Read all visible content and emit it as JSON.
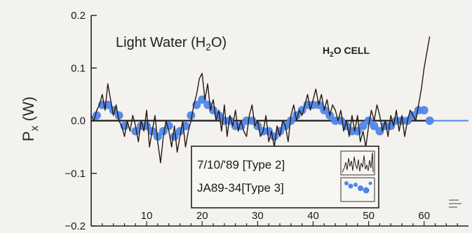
{
  "chart_data": {
    "type": "line",
    "title_text": "Light Water (H",
    "title_sub": "2",
    "title_end": "O)",
    "cell_text": "H",
    "cell_sub": "2",
    "cell_end": "O  CELL",
    "ylabel_main": "P",
    "ylabel_sub": "x",
    "ylabel_end": " (W)",
    "xlabel": "",
    "xlim": [
      0,
      68
    ],
    "ylim": [
      -0.2,
      0.2
    ],
    "x_ticks": [
      10,
      20,
      30,
      40,
      50,
      60
    ],
    "x_tick_labels": [
      "10",
      "20",
      "30",
      "40",
      "50",
      "60"
    ],
    "y_ticks": [
      0.2,
      0.1,
      0.0,
      -0.1,
      -0.2
    ],
    "y_tick_labels": [
      "0.2",
      "0.1",
      "0.0",
      "−0.1",
      "−0.2"
    ],
    "zero_line": true,
    "legend_position": "bottom-center",
    "colors": {
      "series1": "#2a1a10",
      "series2": "#4f86e8",
      "axis": "#222222",
      "zero": "#1a1a1a"
    },
    "series": [
      {
        "name": "7/10/'89 [Type 2]",
        "style": "line",
        "x": [
          0,
          0.5,
          1,
          1.5,
          2,
          2.5,
          3,
          3.5,
          4,
          4.5,
          5,
          5.5,
          6,
          6.5,
          7,
          7.5,
          8,
          8.5,
          9,
          9.5,
          10,
          10.5,
          11,
          11.5,
          12,
          12.5,
          13,
          13.5,
          14,
          14.5,
          15,
          15.5,
          16,
          16.5,
          17,
          17.5,
          18,
          18.5,
          19,
          19.5,
          20,
          20.5,
          21,
          21.5,
          22,
          22.5,
          23,
          23.5,
          24,
          24.5,
          25,
          25.5,
          26,
          26.5,
          27,
          27.5,
          28,
          28.5,
          29,
          29.5,
          30,
          30.5,
          31,
          31.5,
          32,
          32.5,
          33,
          33.5,
          34,
          34.5,
          35,
          35.5,
          36,
          36.5,
          37,
          37.5,
          38,
          38.5,
          39,
          39.5,
          40,
          40.5,
          41,
          41.5,
          42,
          42.5,
          43,
          43.5,
          44,
          44.5,
          45,
          45.5,
          46,
          46.5,
          47,
          47.5,
          48,
          48.5,
          49,
          49.5,
          50,
          50.5,
          51,
          51.5,
          52,
          52.5,
          53,
          53.5,
          54,
          54.5,
          55,
          55.5,
          56,
          56.5,
          57,
          57.5,
          58,
          58.5,
          59,
          59.5,
          60,
          60.5,
          61
        ],
        "y": [
          0.01,
          0.0,
          0.02,
          0.03,
          0.05,
          0.02,
          0.07,
          0.04,
          0.01,
          0.03,
          0.0,
          -0.01,
          -0.03,
          0.0,
          -0.02,
          0.01,
          -0.01,
          -0.04,
          0.0,
          -0.02,
          0.02,
          -0.05,
          -0.02,
          0.01,
          -0.04,
          -0.08,
          -0.03,
          0.0,
          -0.02,
          -0.05,
          -0.01,
          -0.06,
          -0.03,
          0.0,
          -0.05,
          -0.02,
          0.0,
          0.03,
          0.05,
          0.08,
          0.09,
          0.04,
          0.07,
          0.02,
          0.04,
          0.0,
          0.02,
          -0.02,
          0.03,
          -0.03,
          0.01,
          -0.01,
          0.02,
          -0.02,
          0.0,
          -0.02,
          -0.03,
          0.01,
          0.03,
          -0.01,
          0.0,
          -0.03,
          -0.02,
          0.01,
          -0.04,
          -0.02,
          -0.05,
          -0.01,
          -0.03,
          0.0,
          -0.01,
          -0.04,
          0.01,
          0.03,
          0.0,
          0.02,
          0.01,
          0.03,
          0.05,
          0.02,
          0.04,
          0.06,
          0.03,
          0.05,
          0.02,
          0.04,
          0.01,
          0.03,
          0.02,
          0.0,
          0.02,
          -0.02,
          0.0,
          -0.03,
          0.01,
          -0.02,
          0.01,
          -0.04,
          -0.02,
          -0.05,
          -0.01,
          0.02,
          0.0,
          0.03,
          0.01,
          -0.02,
          0.0,
          -0.03,
          0.01,
          -0.01,
          0.02,
          -0.02,
          0.01,
          -0.03,
          0.0,
          0.02,
          0.01,
          0.0,
          0.03,
          0.06,
          0.1,
          0.13,
          0.16
        ]
      },
      {
        "name": "JA89-34[Type 3]",
        "style": "dots",
        "x": [
          1,
          2,
          3,
          4,
          5,
          6,
          8,
          9,
          10,
          11,
          12,
          13,
          14,
          15,
          16,
          17,
          18,
          19,
          20,
          21,
          22,
          23,
          24,
          25,
          26,
          27,
          28,
          29,
          30,
          31,
          32,
          33,
          34,
          35,
          36,
          37,
          38,
          39,
          40,
          41,
          42,
          43,
          44,
          45,
          46,
          47,
          48,
          49,
          50,
          51,
          52,
          53,
          54,
          55,
          56,
          57,
          58,
          59,
          60,
          61,
          62,
          63,
          64,
          65,
          66,
          67
        ],
        "y": [
          0.01,
          0.03,
          0.03,
          0.02,
          0.01,
          -0.01,
          -0.02,
          -0.01,
          -0.01,
          -0.02,
          -0.03,
          -0.02,
          -0.01,
          -0.03,
          -0.02,
          -0.01,
          0.01,
          0.03,
          0.04,
          0.03,
          0.02,
          0.01,
          0.0,
          0.0,
          -0.01,
          -0.01,
          0.0,
          0.0,
          -0.01,
          -0.02,
          -0.02,
          -0.03,
          -0.02,
          -0.01,
          0.0,
          0.01,
          0.02,
          0.03,
          0.03,
          0.03,
          0.02,
          0.01,
          0.0,
          0.0,
          -0.01,
          -0.02,
          -0.02,
          -0.01,
          0.0,
          -0.01,
          -0.02,
          -0.01,
          -0.01,
          0.0,
          0.0,
          0.0,
          0.01,
          0.02,
          0.02,
          0.0,
          0.0,
          0.0,
          0.0,
          0.0,
          0.0,
          0.0
        ]
      }
    ]
  },
  "legend": {
    "entries": [
      {
        "label": "7/10/'89 [Type 2]"
      },
      {
        "label": "JA89-34[Type 3]"
      }
    ]
  }
}
